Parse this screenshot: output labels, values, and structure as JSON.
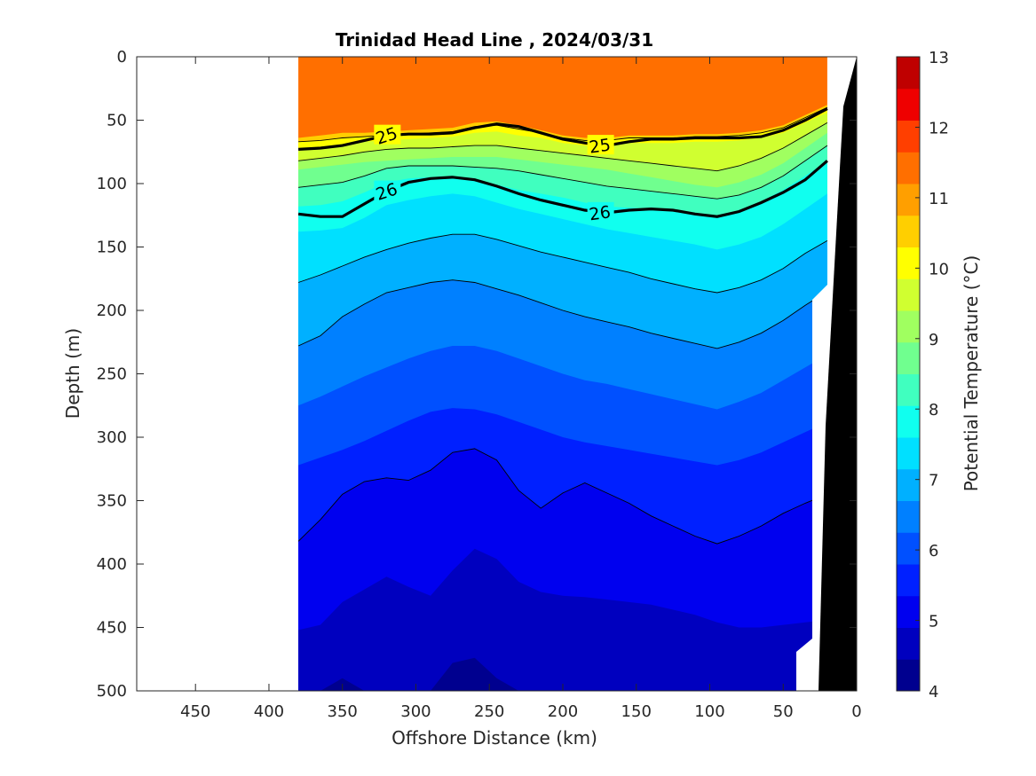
{
  "chart_data": {
    "type": "heatmap",
    "title": "Trinidad Head Line , 2024/03/31",
    "xlabel": "Offshore Distance (km)",
    "ylabel": "Depth (m)",
    "xlim": [
      490,
      0
    ],
    "ylim": [
      0,
      500
    ],
    "x_reversed": true,
    "y_reversed": true,
    "xticks": [
      450,
      400,
      350,
      300,
      250,
      200,
      150,
      100,
      50,
      0
    ],
    "yticks": [
      0,
      50,
      100,
      150,
      200,
      250,
      300,
      350,
      400,
      450,
      500
    ],
    "colorbar": {
      "label": "Potential Temperature (°C)",
      "ticks": [
        4,
        5,
        6,
        7,
        8,
        9,
        10,
        11,
        12,
        13
      ],
      "levels": [
        4,
        4.5,
        5,
        5.5,
        6,
        6.5,
        7,
        7.5,
        8,
        8.5,
        9,
        9.5,
        10,
        10.5,
        11,
        11.5,
        12,
        12.5,
        13
      ],
      "colors": [
        "#00008f",
        "#0000bf",
        "#0000ef",
        "#0020ff",
        "#0050ff",
        "#0080ff",
        "#00b0ff",
        "#00e0ff",
        "#10ffef",
        "#40ffbf",
        "#70ff8f",
        "#a0ff60",
        "#d0ff30",
        "#ffff00",
        "#ffcf00",
        "#ff9f00",
        "#ff6f00",
        "#ff3f00",
        "#ef0000",
        "#bf0000"
      ]
    },
    "data_extent_km": [
      380,
      20
    ],
    "station_distance_km": [
      380,
      365,
      350,
      335,
      320,
      305,
      290,
      275,
      260,
      245,
      230,
      215,
      200,
      185,
      170,
      155,
      140,
      125,
      110,
      95,
      80,
      65,
      50,
      35,
      20
    ],
    "temperature_depth_m": [
      {
        "temp": 11.5,
        "depth": [
          64,
          62,
          60,
          60,
          59,
          58,
          57,
          56,
          52,
          51,
          54,
          58,
          62,
          64,
          64,
          62,
          62,
          62,
          61,
          61,
          60,
          58,
          54,
          46,
          38
        ]
      },
      {
        "temp": 11,
        "depth": [
          67,
          66,
          64,
          63,
          62,
          61,
          60,
          59,
          55,
          54,
          57,
          60,
          64,
          66,
          66,
          64,
          64,
          64,
          63,
          63,
          62,
          60,
          56,
          48,
          40
        ]
      },
      {
        "temp": 10.5,
        "depth": [
          72,
          71,
          69,
          67,
          66,
          65,
          64,
          63,
          60,
          59,
          62,
          64,
          68,
          70,
          70,
          68,
          68,
          68,
          67,
          67,
          66,
          64,
          60,
          52,
          44
        ]
      },
      {
        "temp": 10,
        "depth": [
          82,
          80,
          78,
          75,
          73,
          72,
          72,
          71,
          70,
          70,
          72,
          74,
          76,
          78,
          80,
          82,
          84,
          86,
          88,
          90,
          86,
          80,
          72,
          62,
          52
        ]
      },
      {
        "temp": 9.5,
        "depth": [
          89,
          87,
          85,
          83,
          82,
          81,
          80,
          79,
          79,
          79,
          81,
          83,
          85,
          87,
          89,
          92,
          95,
          98,
          101,
          103,
          99,
          93,
          84,
          72,
          60
        ]
      },
      {
        "temp": 9,
        "depth": [
          103,
          101,
          99,
          94,
          88,
          86,
          86,
          86,
          87,
          88,
          90,
          93,
          96,
          99,
          102,
          104,
          106,
          108,
          110,
          112,
          109,
          103,
          94,
          82,
          70
        ]
      },
      {
        "temp": 8.5,
        "depth": [
          118,
          117,
          114,
          107,
          99,
          96,
          95,
          95,
          97,
          101,
          105,
          108,
          111,
          115,
          118,
          119,
          120,
          122,
          124,
          126,
          121,
          114,
          105,
          94,
          82
        ]
      },
      {
        "temp": 8,
        "depth": [
          138,
          137,
          135,
          127,
          117,
          113,
          110,
          108,
          110,
          115,
          120,
          124,
          128,
          132,
          136,
          139,
          142,
          145,
          148,
          152,
          148,
          142,
          132,
          120,
          108
        ]
      },
      {
        "temp": 7.5,
        "depth": [
          178,
          172,
          165,
          158,
          152,
          147,
          143,
          140,
          140,
          144,
          149,
          154,
          158,
          162,
          166,
          170,
          175,
          179,
          183,
          186,
          182,
          176,
          167,
          155,
          145
        ]
      },
      {
        "temp": 7,
        "depth": [
          228,
          220,
          205,
          195,
          186,
          182,
          178,
          176,
          178,
          183,
          188,
          194,
          200,
          205,
          209,
          213,
          218,
          222,
          226,
          230,
          225,
          218,
          208,
          196,
          185
        ]
      },
      {
        "temp": 6.5,
        "depth": [
          275,
          268,
          260,
          252,
          245,
          238,
          232,
          228,
          228,
          232,
          238,
          244,
          250,
          255,
          258,
          262,
          266,
          270,
          274,
          278,
          272,
          265,
          255,
          245,
          235
        ]
      },
      {
        "temp": 6,
        "depth": [
          322,
          316,
          310,
          303,
          295,
          287,
          280,
          277,
          278,
          282,
          288,
          294,
          300,
          304,
          307,
          310,
          313,
          316,
          319,
          322,
          318,
          312,
          304,
          296,
          288
        ]
      },
      {
        "temp": 5.5,
        "depth": [
          382,
          365,
          345,
          335,
          332,
          334,
          326,
          312,
          309,
          318,
          342,
          356,
          344,
          336,
          344,
          352,
          362,
          370,
          378,
          384,
          378,
          370,
          360,
          352,
          345
        ]
      },
      {
        "temp": 5,
        "depth": [
          452,
          448,
          430,
          420,
          410,
          418,
          425,
          405,
          388,
          396,
          414,
          422,
          425,
          426,
          428,
          430,
          432,
          436,
          440,
          446,
          450,
          450,
          448,
          446,
          444
        ]
      },
      {
        "temp": 4.5,
        "depth": [
          500,
          500,
          490,
          500,
          500,
          500,
          500,
          478,
          474,
          490,
          500,
          500,
          500,
          500,
          500,
          500,
          500,
          500,
          500,
          500,
          500,
          500,
          500,
          500,
          500
        ]
      }
    ],
    "density_contours": [
      {
        "label": "25",
        "bold": true,
        "depth": [
          73,
          72,
          70,
          66,
          62,
          61,
          61,
          60,
          56,
          53,
          55,
          60,
          65,
          68,
          70,
          67,
          65,
          65,
          64,
          64,
          64,
          63,
          58,
          50,
          41
        ]
      },
      {
        "label": "26",
        "bold": true,
        "depth": [
          124,
          126,
          126,
          116,
          106,
          99,
          96,
          95,
          97,
          102,
          108,
          113,
          117,
          121,
          123,
          121,
          120,
          121,
          124,
          126,
          122,
          115,
          107,
          97,
          82
        ]
      }
    ]
  }
}
